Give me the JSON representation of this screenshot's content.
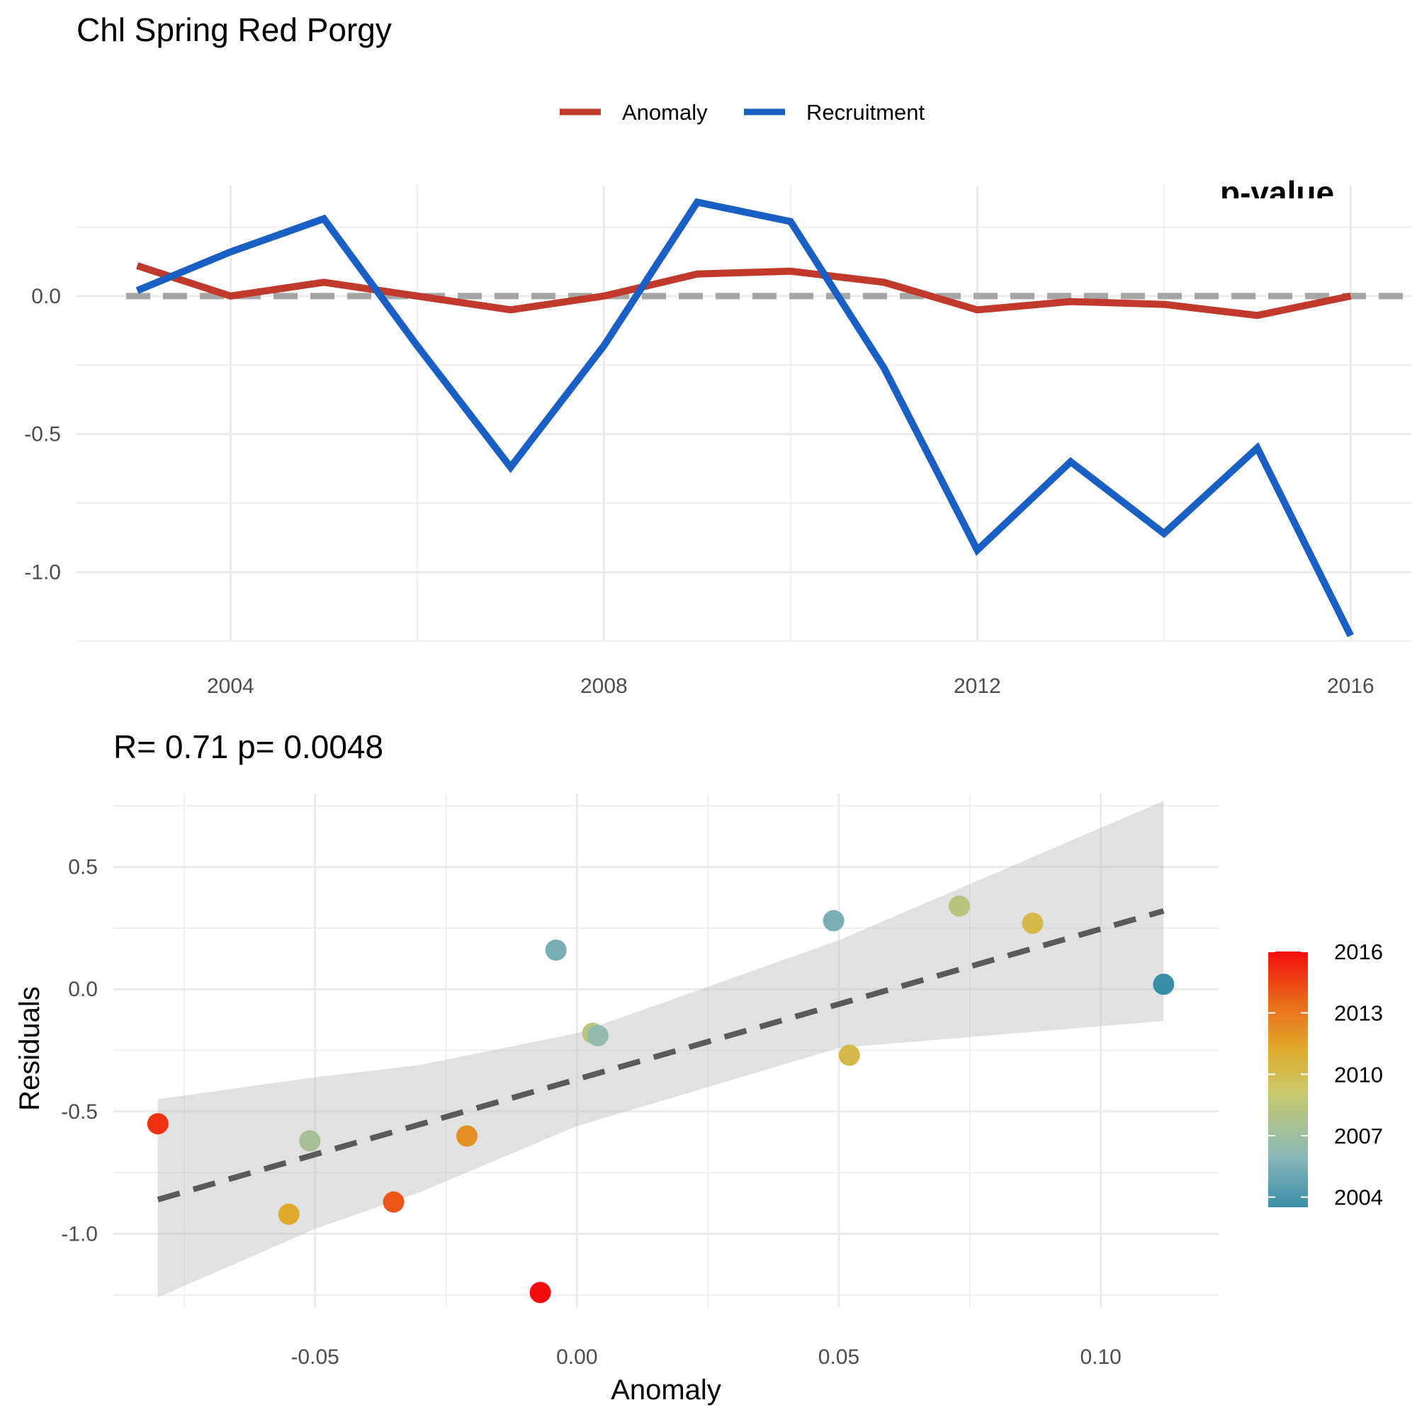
{
  "chart_data": [
    {
      "type": "line",
      "title": "Chl Spring  Red Porgy",
      "corner_label": "p-value",
      "x": [
        2003,
        2004,
        2005,
        2006,
        2007,
        2008,
        2009,
        2010,
        2011,
        2012,
        2013,
        2014,
        2015,
        2016
      ],
      "xticks": [
        "2004",
        "2008",
        "2012",
        "2016"
      ],
      "yticks": [
        "0.0",
        "-0.5",
        "-1.0"
      ],
      "ylim": [
        -1.25,
        0.4
      ],
      "xlim": [
        2002.35,
        2016.65
      ],
      "legend_position": "top",
      "grid": true,
      "reference_line": 0,
      "series": [
        {
          "name": "Anomaly",
          "color": "#c0392b",
          "values": [
            0.11,
            0.0,
            0.05,
            0.0,
            -0.05,
            0.0,
            0.08,
            0.09,
            0.05,
            -0.05,
            -0.02,
            -0.03,
            -0.07,
            0.0
          ]
        },
        {
          "name": "Recruitment",
          "color": "#1a5fc4",
          "values": [
            0.02,
            0.16,
            0.28,
            -0.18,
            -0.62,
            -0.18,
            0.34,
            0.27,
            -0.26,
            -0.92,
            -0.6,
            -0.86,
            -0.55,
            -1.23
          ]
        }
      ]
    },
    {
      "type": "scatter",
      "title": "R= 0.71  p= 0.0048",
      "xlabel": "Anomaly",
      "ylabel": "Residuals",
      "xticks": [
        "-0.05",
        "0.00",
        "0.05",
        "0.10"
      ],
      "yticks": [
        "0.5",
        "0.0",
        "-0.5",
        "-1.0"
      ],
      "xlim": [
        -0.0885,
        0.1225
      ],
      "ylim": [
        -1.3,
        0.8
      ],
      "grid": true,
      "fit_line": {
        "x": [
          -0.08,
          0.112
        ],
        "y": [
          -0.86,
          0.32
        ],
        "color": "#5a5a5a"
      },
      "confidence_band": {
        "x": [
          -0.08,
          -0.05,
          -0.03,
          0.0,
          0.05,
          0.112
        ],
        "upper": [
          -0.45,
          -0.36,
          -0.31,
          -0.18,
          0.2,
          0.77
        ],
        "lower": [
          -1.26,
          -0.98,
          -0.83,
          -0.56,
          -0.24,
          -0.13
        ]
      },
      "points": [
        {
          "x": -0.08,
          "y": -0.55,
          "year": 2015
        },
        {
          "x": -0.051,
          "y": -0.62,
          "year": 2007
        },
        {
          "x": -0.055,
          "y": -0.92,
          "year": 2011
        },
        {
          "x": -0.035,
          "y": -0.87,
          "year": 2014
        },
        {
          "x": -0.021,
          "y": -0.6,
          "year": 2012
        },
        {
          "x": -0.007,
          "y": -1.24,
          "year": 2016
        },
        {
          "x": -0.004,
          "y": 0.16,
          "year": 2005
        },
        {
          "x": 0.003,
          "y": -0.18,
          "year": 2008
        },
        {
          "x": 0.004,
          "y": -0.19,
          "year": 2006
        },
        {
          "x": 0.049,
          "y": 0.28,
          "year": 2005
        },
        {
          "x": 0.052,
          "y": -0.27,
          "year": 2010
        },
        {
          "x": 0.073,
          "y": 0.34,
          "year": 2008
        },
        {
          "x": 0.087,
          "y": 0.27,
          "year": 2010
        },
        {
          "x": 0.112,
          "y": 0.02,
          "year": 2003
        }
      ],
      "color_scale": {
        "labels": [
          "2016",
          "2013",
          "2010",
          "2007",
          "2004"
        ],
        "min": 2003,
        "max": 2016,
        "stops": [
          "#3a8fa8",
          "#8ab8b8",
          "#c9c96a",
          "#e0a92a",
          "#ea6a1a",
          "#f20d0d"
        ]
      }
    }
  ]
}
